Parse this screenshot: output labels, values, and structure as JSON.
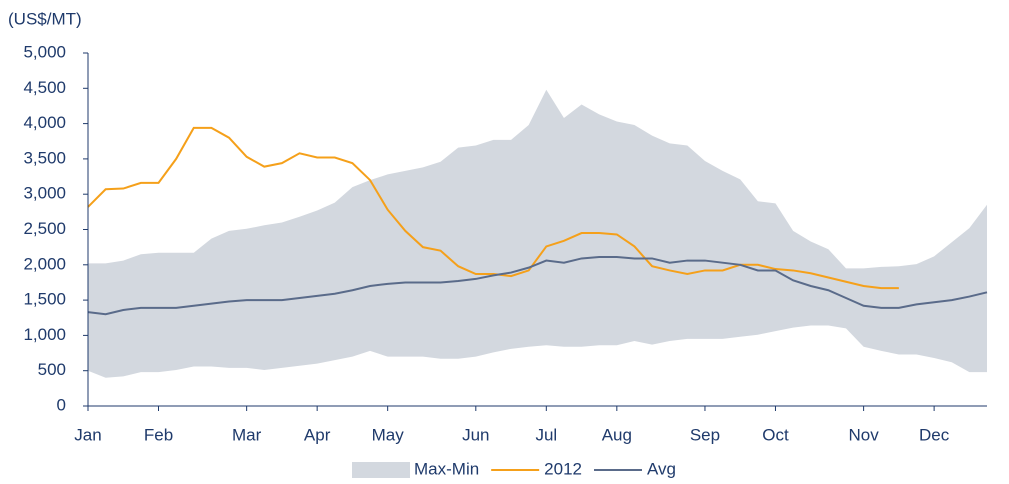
{
  "chart_data": {
    "type": "line",
    "unit_label": "(US$/MT)",
    "categories": [
      "Jan",
      null,
      null,
      null,
      "Feb",
      null,
      null,
      null,
      null,
      "Mar",
      null,
      null,
      null,
      "Apr",
      null,
      null,
      null,
      "May",
      null,
      null,
      null,
      null,
      "Jun",
      null,
      null,
      null,
      "Jul",
      null,
      null,
      null,
      "Aug",
      null,
      null,
      null,
      null,
      "Sep",
      null,
      null,
      null,
      "Oct",
      null,
      null,
      null,
      null,
      "Nov",
      null,
      null,
      null,
      "Dec",
      null,
      null,
      null
    ],
    "series": [
      {
        "name": "Max-Min",
        "color": "#d3d8df",
        "high": [
          2020,
          2020,
          2060,
          2150,
          2170,
          2170,
          2170,
          2370,
          2480,
          2510,
          2560,
          2600,
          2680,
          2770,
          2880,
          3100,
          3200,
          3280,
          3330,
          3380,
          3460,
          3660,
          3690,
          3770,
          3770,
          3980,
          4480,
          4080,
          4270,
          4130,
          4030,
          3980,
          3830,
          3720,
          3690,
          3470,
          3330,
          3210,
          2900,
          2870,
          2480,
          2330,
          2220,
          1950,
          1950,
          1970,
          1980,
          2010,
          2120,
          2320,
          2520,
          2850
        ],
        "low": [
          500,
          400,
          420,
          480,
          480,
          510,
          560,
          560,
          540,
          540,
          510,
          540,
          570,
          600,
          650,
          700,
          780,
          700,
          700,
          700,
          670,
          670,
          700,
          760,
          810,
          840,
          860,
          840,
          840,
          860,
          860,
          920,
          870,
          920,
          950,
          950,
          950,
          980,
          1010,
          1060,
          1110,
          1140,
          1140,
          1100,
          840,
          780,
          730,
          730,
          680,
          620,
          480,
          480
        ]
      },
      {
        "name": "2012",
        "color": "#f5a01a",
        "values": [
          2820,
          3070,
          3080,
          3160,
          3160,
          3500,
          3940,
          3940,
          3800,
          3530,
          3390,
          3440,
          3580,
          3520,
          3520,
          3440,
          3200,
          2780,
          2480,
          2250,
          2200,
          1980,
          1870,
          1870,
          1840,
          1920,
          2260,
          2340,
          2450,
          2450,
          2430,
          2260,
          1980,
          1920,
          1870,
          1920,
          1920,
          2000,
          2000,
          1940,
          1920,
          1880,
          1820,
          1760,
          1700,
          1670,
          1670,
          null,
          null,
          null,
          null,
          null
        ]
      },
      {
        "name": "Avg",
        "color": "#5a6b8a",
        "values": [
          1330,
          1300,
          1360,
          1390,
          1390,
          1390,
          1420,
          1450,
          1480,
          1500,
          1500,
          1500,
          1530,
          1560,
          1590,
          1640,
          1700,
          1730,
          1750,
          1750,
          1750,
          1770,
          1800,
          1850,
          1890,
          1960,
          2060,
          2030,
          2090,
          2110,
          2110,
          2090,
          2090,
          2030,
          2060,
          2060,
          2030,
          2000,
          1920,
          1920,
          1780,
          1700,
          1640,
          1530,
          1420,
          1390,
          1390,
          1440,
          1470,
          1500,
          1550,
          1610
        ]
      }
    ],
    "ylim": [
      0,
      5000
    ],
    "yticks": [
      0,
      500,
      {
        "value": 1000,
        "label": "1,000"
      },
      {
        "value": 1500,
        "label": "1,500"
      },
      {
        "value": 2000,
        "label": "2,000"
      },
      {
        "value": 2500,
        "label": "2,500"
      },
      {
        "value": 3000,
        "label": "3,000"
      },
      {
        "value": 3500,
        "label": "3,500"
      },
      {
        "value": 4000,
        "label": "4,000"
      },
      {
        "value": 4500,
        "label": "4,500"
      },
      {
        "value": 5000,
        "label": "5,000"
      }
    ],
    "grid": false,
    "legend": "bottom"
  }
}
